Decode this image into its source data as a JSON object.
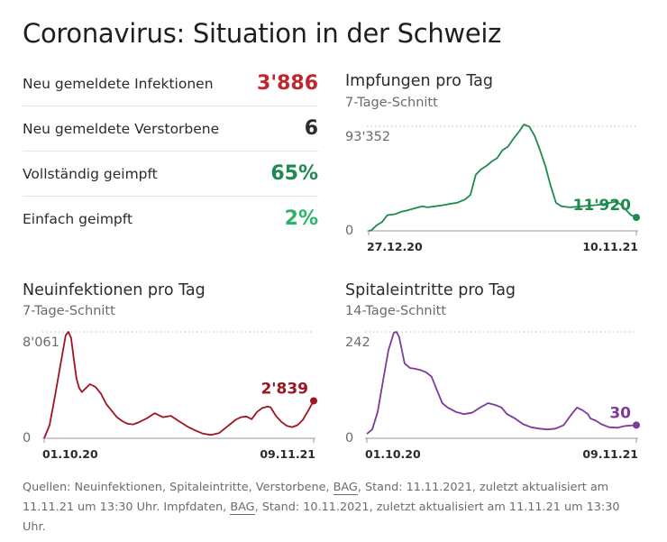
{
  "title": "Coronavirus: Situation in der Schweiz",
  "stats": [
    {
      "label": "Neu gemeldete Infektionen",
      "value": "3'886",
      "color": "#c0262e"
    },
    {
      "label": "Neu gemeldete Verstorbene",
      "value": "6",
      "color": "#2b2b2b"
    },
    {
      "label": "Vollständig geimpft",
      "value": "65%",
      "color": "#1e8a4f"
    },
    {
      "label": "Einfach geimpft",
      "value": "2%",
      "color": "#2eb36a"
    }
  ],
  "chart_data": [
    {
      "type": "line",
      "title": "Impfungen pro Tag",
      "subtitle": "7-Tage-Schnitt",
      "color": "#1e8a4f",
      "ylim": [
        0,
        93352
      ],
      "ytick_labels": [
        "93'352",
        "0"
      ],
      "xtick_labels": [
        "27.12.20",
        "10.11.21"
      ],
      "x_range": [
        "2020-12-27",
        "2021-11-10"
      ],
      "last_value_label": "11'920",
      "x": [
        0,
        0.01,
        0.03,
        0.05,
        0.07,
        0.1,
        0.12,
        0.14,
        0.17,
        0.2,
        0.22,
        0.25,
        0.28,
        0.3,
        0.33,
        0.36,
        0.38,
        0.4,
        0.42,
        0.44,
        0.46,
        0.48,
        0.5,
        0.52,
        0.54,
        0.56,
        0.58,
        0.6,
        0.62,
        0.64,
        0.66,
        0.68,
        0.7,
        0.72,
        0.75,
        0.8,
        0.85,
        0.88,
        0.9,
        0.92,
        0.94,
        0.96,
        0.98,
        1
      ],
      "values": [
        0,
        500,
        5000,
        8000,
        14000,
        15000,
        17000,
        18000,
        20000,
        22000,
        21000,
        22000,
        23000,
        24000,
        25000,
        28000,
        32000,
        50000,
        55000,
        58000,
        62000,
        65000,
        72000,
        75000,
        82000,
        88000,
        95000,
        93000,
        85000,
        72000,
        58000,
        40000,
        25000,
        22000,
        21000,
        22000,
        23000,
        24000,
        25000,
        26000,
        24000,
        19000,
        14000,
        12000
      ]
    },
    {
      "type": "line",
      "title": "Neuinfektionen pro Tag",
      "subtitle": "7-Tage-Schnitt",
      "color": "#9e1421",
      "ylim": [
        0,
        8061
      ],
      "ytick_labels": [
        "8'061",
        "0"
      ],
      "xtick_labels": [
        "01.10.20",
        "09.11.21"
      ],
      "x_range": [
        "2020-10-01",
        "2021-11-09"
      ],
      "last_value_label": "2'839",
      "x": [
        0,
        0.02,
        0.04,
        0.06,
        0.08,
        0.09,
        0.1,
        0.11,
        0.12,
        0.13,
        0.14,
        0.15,
        0.17,
        0.19,
        0.21,
        0.23,
        0.25,
        0.27,
        0.29,
        0.31,
        0.33,
        0.35,
        0.38,
        0.41,
        0.44,
        0.47,
        0.5,
        0.53,
        0.56,
        0.59,
        0.62,
        0.65,
        0.68,
        0.71,
        0.73,
        0.75,
        0.77,
        0.79,
        0.81,
        0.83,
        0.84,
        0.86,
        0.88,
        0.9,
        0.92,
        0.94,
        0.96,
        0.98,
        1
      ],
      "values": [
        0,
        1000,
        3200,
        5500,
        7800,
        8061,
        7600,
        6000,
        4500,
        3800,
        3500,
        3700,
        4100,
        3900,
        3400,
        2600,
        2100,
        1600,
        1300,
        1100,
        1050,
        1200,
        1500,
        1900,
        1600,
        1700,
        1300,
        900,
        600,
        350,
        250,
        400,
        900,
        1400,
        1600,
        1650,
        1450,
        2000,
        2300,
        2400,
        2350,
        1700,
        1250,
        950,
        850,
        1000,
        1400,
        2100,
        2839
      ]
    },
    {
      "type": "line",
      "title": "Spitaleintritte pro Tag",
      "subtitle": "14-Tage-Schnitt",
      "color": "#7d3a9a",
      "ylim": [
        0,
        242
      ],
      "ytick_labels": [
        "242",
        "0"
      ],
      "xtick_labels": [
        "01.10.20",
        "09.11.21"
      ],
      "x_range": [
        "2020-10-01",
        "2021-11-09"
      ],
      "last_value_label": "30",
      "x": [
        0,
        0.02,
        0.04,
        0.06,
        0.08,
        0.1,
        0.11,
        0.12,
        0.13,
        0.14,
        0.16,
        0.18,
        0.2,
        0.22,
        0.24,
        0.26,
        0.28,
        0.3,
        0.33,
        0.36,
        0.39,
        0.42,
        0.45,
        0.48,
        0.5,
        0.52,
        0.55,
        0.58,
        0.61,
        0.64,
        0.67,
        0.7,
        0.73,
        0.76,
        0.78,
        0.8,
        0.82,
        0.83,
        0.85,
        0.87,
        0.9,
        0.93,
        0.96,
        1
      ],
      "values": [
        10,
        20,
        60,
        130,
        200,
        240,
        242,
        230,
        200,
        170,
        160,
        158,
        155,
        150,
        140,
        110,
        80,
        70,
        60,
        55,
        58,
        70,
        80,
        75,
        70,
        55,
        45,
        32,
        25,
        22,
        20,
        22,
        30,
        55,
        70,
        64,
        55,
        45,
        40,
        32,
        25,
        24,
        28,
        30
      ]
    }
  ],
  "footer": {
    "sources_prefix": "Quellen: Neuinfektionen, Spitaleintritte, Verstorbene,",
    "bag": "BAG",
    "sources_suffix": ", Stand: 11.11.2021, zuletzt aktualisiert am 11.11.21 um 13:30 Uhr. Impfdaten,",
    "bag2": "BAG",
    "impf_suffix": ", Stand: 10.11.2021, zuletzt aktualisiert am 11.11.21 um 13:30 Uhr."
  }
}
